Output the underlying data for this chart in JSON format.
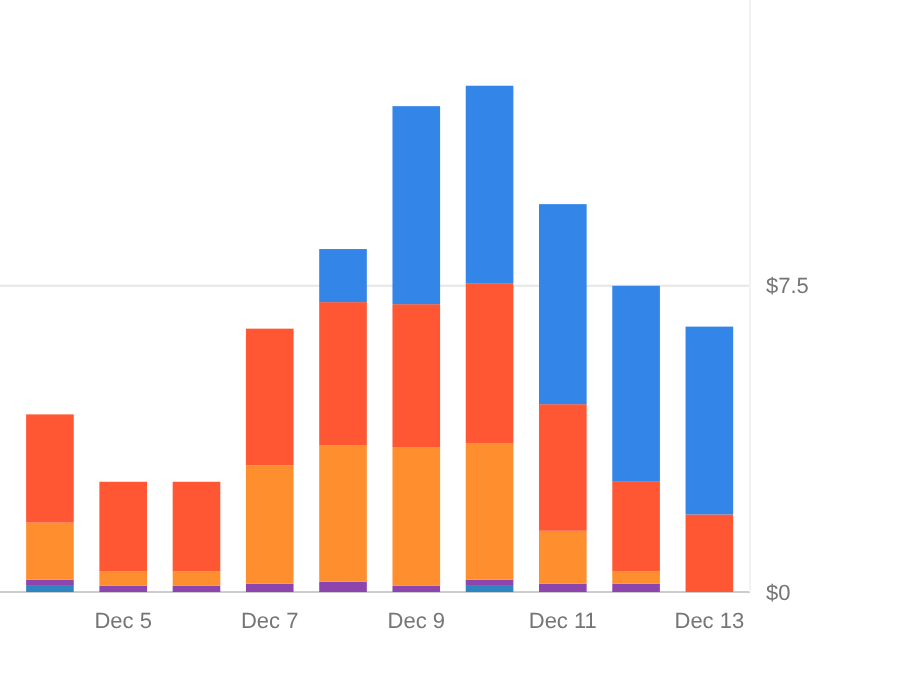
{
  "chart_data": {
    "type": "bar",
    "stacked": true,
    "categories": [
      null,
      "Dec 5",
      null,
      "Dec 7",
      null,
      "Dec 9",
      null,
      "Dec 11",
      null,
      "Dec 13"
    ],
    "series": [
      {
        "color": "#2e86c1",
        "values": [
          0.15,
          0,
          0,
          0,
          0,
          0,
          0.15,
          0,
          0,
          0
        ]
      },
      {
        "color": "#8e44ad",
        "values": [
          0.15,
          0.15,
          0.15,
          0.2,
          0.25,
          0.15,
          0.15,
          0.2,
          0.2,
          0
        ]
      },
      {
        "color": "#ff8f2e",
        "values": [
          1.4,
          0.35,
          0.35,
          2.9,
          3.35,
          3.4,
          3.35,
          1.3,
          0.3,
          0
        ]
      },
      {
        "color": "#ff5733",
        "values": [
          2.65,
          2.2,
          2.2,
          3.35,
          3.5,
          3.5,
          3.9,
          3.1,
          2.2,
          1.9
        ]
      },
      {
        "color": "#3385e8",
        "values": [
          0,
          0,
          0,
          0,
          1.3,
          4.85,
          4.85,
          4.9,
          4.8,
          4.6
        ]
      }
    ],
    "ylim": [
      0,
      14.5
    ],
    "yticks": [
      {
        "value": 0,
        "label": "$0"
      },
      {
        "value": 7.5,
        "label": "$7.5"
      }
    ],
    "grid": "y"
  }
}
